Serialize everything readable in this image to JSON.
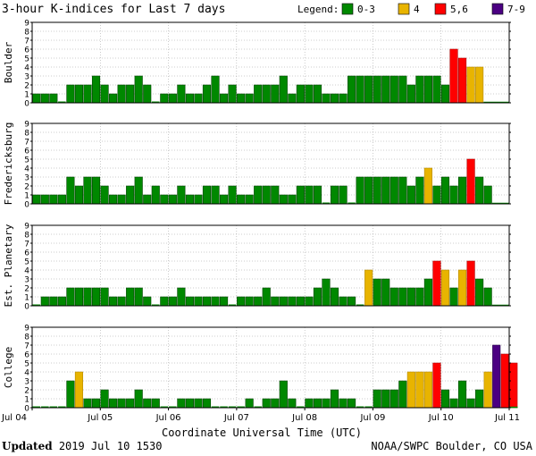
{
  "chart_data": {
    "type": "bar",
    "title": "3-hour K-indices for Last 7 days",
    "legend": {
      "label": "Legend:",
      "items": [
        {
          "label": "0-3",
          "color": "#008800"
        },
        {
          "label": "4",
          "color": "#e8b400"
        },
        {
          "label": "5,6",
          "color": "#ff0000"
        },
        {
          "label": "7-9",
          "color": "#4b0082"
        }
      ]
    },
    "bar_outline_colors": {
      "green": "#004400",
      "yellow": "#b48800",
      "red": "#aa0000",
      "purple": "#220044"
    },
    "xlabel": "Coordinate Universal Time (UTC)",
    "x_tick_labels": [
      "Jul 04",
      "Jul 05",
      "Jul 06",
      "Jul 07",
      "Jul 08",
      "Jul 09",
      "Jul 10",
      "Jul 11"
    ],
    "y_ticks": [
      0,
      1,
      2,
      3,
      4,
      5,
      6,
      7,
      8,
      9
    ],
    "ylim": [
      0,
      9
    ],
    "bars_per_day": 8,
    "panels": [
      {
        "name": "Boulder",
        "values": [
          1,
          1,
          1,
          0,
          2,
          2,
          2,
          3,
          2,
          1,
          2,
          2,
          3,
          2,
          0,
          1,
          1,
          2,
          1,
          1,
          2,
          3,
          1,
          2,
          1,
          1,
          2,
          2,
          2,
          3,
          1,
          2,
          2,
          2,
          1,
          1,
          1,
          3,
          3,
          3,
          3,
          3,
          3,
          3,
          2,
          3,
          3,
          3,
          2,
          6,
          5,
          4,
          4,
          null,
          null,
          null
        ]
      },
      {
        "name": "Fredericksburg",
        "values": [
          1,
          1,
          1,
          1,
          3,
          2,
          3,
          3,
          2,
          1,
          1,
          2,
          3,
          1,
          2,
          1,
          1,
          2,
          1,
          1,
          2,
          2,
          1,
          2,
          1,
          1,
          2,
          2,
          2,
          1,
          1,
          2,
          2,
          2,
          0,
          2,
          2,
          0,
          3,
          3,
          3,
          3,
          3,
          3,
          2,
          3,
          4,
          2,
          3,
          2,
          3,
          5,
          3,
          2,
          null,
          null
        ]
      },
      {
        "name": "Est. Planetary",
        "values": [
          0,
          1,
          1,
          1,
          2,
          2,
          2,
          2,
          2,
          1,
          1,
          2,
          2,
          1,
          0,
          1,
          1,
          2,
          1,
          1,
          1,
          1,
          1,
          0,
          1,
          1,
          1,
          2,
          1,
          1,
          1,
          1,
          1,
          2,
          3,
          2,
          1,
          1,
          0,
          4,
          3,
          3,
          2,
          2,
          2,
          2,
          3,
          5,
          4,
          2,
          4,
          5,
          3,
          2,
          null,
          null
        ]
      },
      {
        "name": "College",
        "values": [
          0,
          0,
          0,
          0,
          3,
          4,
          1,
          1,
          2,
          1,
          1,
          1,
          2,
          1,
          1,
          0,
          0,
          1,
          1,
          1,
          1,
          0,
          0,
          0,
          0,
          1,
          0,
          1,
          1,
          3,
          1,
          0,
          1,
          1,
          1,
          2,
          1,
          1,
          0,
          0,
          2,
          2,
          2,
          3,
          4,
          4,
          4,
          5,
          2,
          1,
          3,
          1,
          2,
          4,
          7,
          6,
          5,
          null
        ]
      }
    ]
  },
  "footer": {
    "updated_label": "Updated",
    "updated_value": "2019 Jul 10 1530",
    "agency": "NOAA/SWPC Boulder, CO USA"
  }
}
